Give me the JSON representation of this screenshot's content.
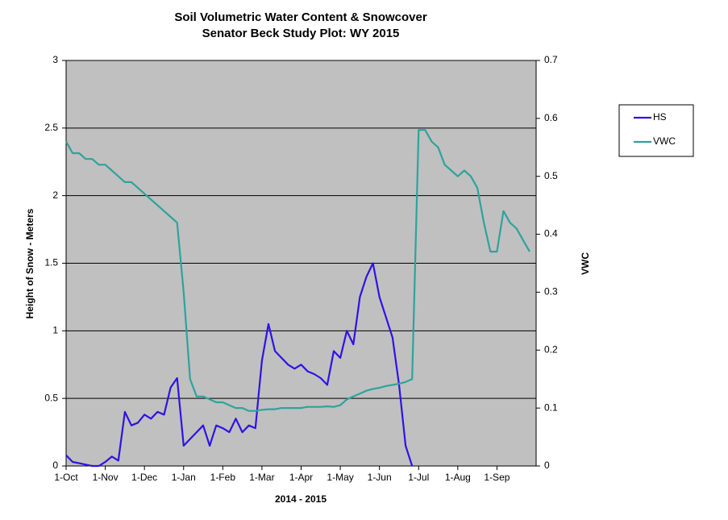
{
  "chart_data": {
    "type": "line",
    "title": "Soil Volumetric Water Content & Snowcover",
    "subtitle": "Senator Beck Study Plot: WY 2015",
    "xlabel": "2014 - 2015",
    "ylabel": "Height of Snow - Meters",
    "y2label": "VWC",
    "categories": [
      "1-Oct",
      null,
      null,
      null,
      null,
      null,
      "1-Nov",
      null,
      null,
      null,
      null,
      null,
      "1-Dec",
      null,
      null,
      null,
      null,
      null,
      "1-Jan",
      null,
      null,
      null,
      null,
      null,
      "1-Feb",
      null,
      null,
      null,
      null,
      null,
      "1-Mar",
      null,
      null,
      null,
      null,
      null,
      "1-Apr",
      null,
      null,
      null,
      null,
      null,
      "1-May",
      null,
      null,
      null,
      null,
      null,
      "1-Jun",
      null,
      null,
      null,
      null,
      null,
      "1-Jul",
      null,
      null,
      null,
      null,
      null,
      "1-Aug",
      null,
      null,
      null,
      null,
      null,
      "1-Sep",
      null,
      null,
      null,
      null,
      null
    ],
    "series": [
      {
        "name": "HS",
        "color": "#2f12e6",
        "axis": "y",
        "values": [
          0.08,
          0.03,
          0.02,
          0.01,
          0,
          0,
          0.03,
          0.07,
          0.04,
          0.4,
          0.3,
          0.32,
          0.38,
          0.35,
          0.4,
          0.38,
          0.58,
          0.65,
          0.15,
          0.2,
          0.25,
          0.3,
          0.15,
          0.3,
          0.28,
          0.25,
          0.35,
          0.25,
          0.3,
          0.28,
          0.78,
          1.05,
          0.85,
          0.8,
          0.75,
          0.72,
          0.75,
          0.7,
          0.68,
          0.65,
          0.6,
          0.85,
          0.8,
          1.0,
          0.9,
          1.25,
          1.4,
          1.5,
          1.25,
          1.1,
          0.95,
          0.6,
          0.15,
          0,
          null,
          null,
          null,
          null,
          null,
          null,
          null,
          null,
          null,
          null,
          null,
          null,
          null,
          null,
          null,
          null,
          null,
          null
        ]
      },
      {
        "name": "VWC",
        "color": "#2ea39c",
        "axis": "y2",
        "values": [
          0.56,
          0.54,
          0.54,
          0.53,
          0.53,
          0.52,
          0.52,
          0.51,
          0.5,
          0.49,
          0.49,
          0.48,
          0.47,
          0.46,
          0.45,
          0.44,
          0.43,
          0.42,
          0.3,
          0.15,
          0.12,
          0.12,
          0.115,
          0.11,
          0.11,
          0.105,
          0.1,
          0.1,
          0.095,
          0.095,
          0.097,
          0.098,
          0.098,
          0.1,
          0.1,
          0.1,
          0.1,
          0.102,
          0.102,
          0.102,
          0.103,
          0.102,
          0.105,
          0.115,
          0.12,
          0.125,
          0.13,
          0.133,
          0.135,
          0.138,
          0.14,
          0.142,
          0.145,
          0.15,
          0.58,
          0.58,
          0.56,
          0.55,
          0.52,
          0.51,
          0.5,
          0.51,
          0.5,
          0.48,
          0.42,
          0.37,
          0.37,
          0.44,
          0.42,
          0.41,
          0.39,
          0.37
        ]
      }
    ],
    "ylim": [
      0,
      3
    ],
    "yticks": [
      0,
      0.5,
      1,
      1.5,
      2,
      2.5,
      3
    ],
    "y2lim": [
      0,
      0.7
    ],
    "y2ticks": [
      0,
      0.1,
      0.2,
      0.3,
      0.4,
      0.5,
      0.6,
      0.7
    ],
    "grid": true,
    "legend": "right",
    "background": "#c0c0c0"
  }
}
